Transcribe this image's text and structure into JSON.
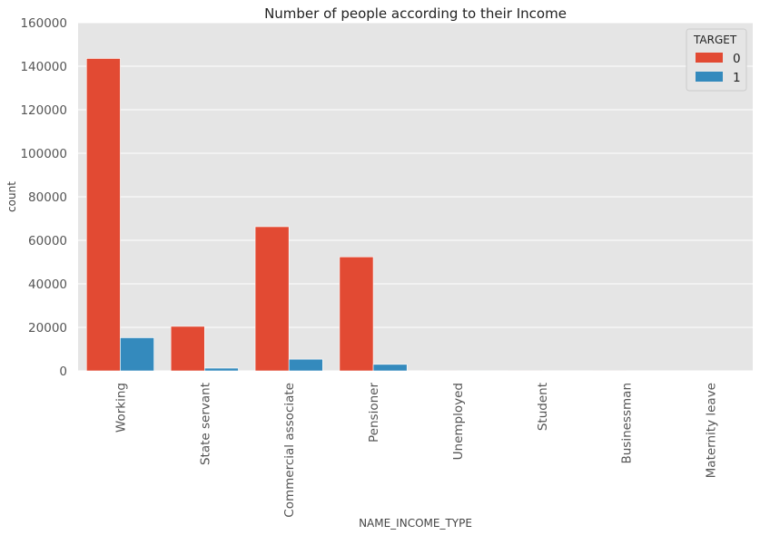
{
  "chart_data": {
    "type": "bar",
    "title": "Number of people according to their Income",
    "xlabel": "NAME_INCOME_TYPE",
    "ylabel": "count",
    "categories": [
      "Working",
      "State servant",
      "Commercial associate",
      "Pensioner",
      "Unemployed",
      "Student",
      "Businessman",
      "Maternity leave"
    ],
    "series": [
      {
        "name": "0",
        "color": "#E24A33",
        "values": [
          143550,
          20454,
          66257,
          52380,
          14,
          18,
          10,
          3
        ]
      },
      {
        "name": "1",
        "color": "#348ABD",
        "values": [
          15224,
          1249,
          5360,
          2982,
          8,
          0,
          0,
          2
        ]
      }
    ],
    "ylim": [
      0,
      160000
    ],
    "yticks": [
      0,
      20000,
      40000,
      60000,
      80000,
      100000,
      120000,
      140000,
      160000
    ],
    "grid": true,
    "legend": {
      "title": "TARGET",
      "placement": "top-right"
    }
  }
}
